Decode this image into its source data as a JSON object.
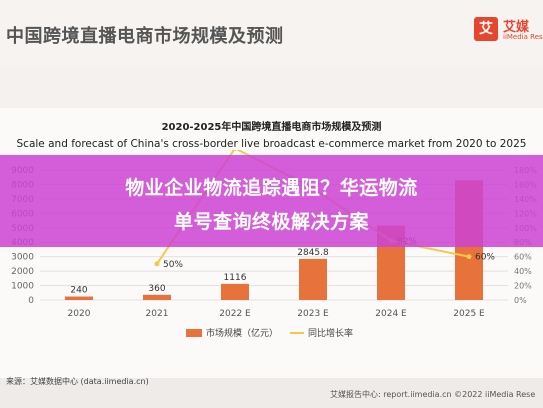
{
  "header": {
    "title": "中国跨境直播电商市场规模及预测",
    "logo_mark": "艾",
    "logo_name": "艾媒",
    "logo_sub": "iiMedia Res"
  },
  "banner": {
    "line1": "物业企业物流追踪遇阻？华运物流",
    "line2": "单号查询终极解决方案",
    "color": "#cd42d4"
  },
  "footer": {
    "source": "来源：艾媒数据中心 (data.iimedia.cn)",
    "right": "艾媒报告中心: report.iimedia.cn  ©2022  iiMedia Rese"
  },
  "chart_data": {
    "type": "bar",
    "title": "2020-2025年中国跨境直播电商市场规模及预测",
    "subtitle": "Scale and forecast of China's cross-border live broadcast e-commerce market from 2020 to 2025",
    "categories": [
      "2020",
      "2021",
      "2022 E",
      "2023 E",
      "2024 E",
      "2025 E"
    ],
    "ylim": [
      0,
      9000
    ],
    "yticks": [
      "0",
      "1000",
      "2000",
      "3000",
      "4000",
      "5000",
      "6000",
      "7000",
      "8000",
      "9000"
    ],
    "y2ticks": [
      "0%",
      "20%",
      "40%",
      "60%",
      "80%",
      "100%",
      "120%",
      "140%",
      "160%",
      "180%"
    ],
    "y2lim": [
      0,
      180
    ],
    "series": [
      {
        "name": "市场规模（亿元）",
        "type": "bar",
        "color": "#e8723c",
        "values": [
          240,
          360,
          1116,
          2845.8,
          5145,
          8287
        ],
        "labels": [
          "240",
          "360",
          "1116",
          "2845.8",
          "",
          ""
        ]
      },
      {
        "name": "同比增长率",
        "type": "line",
        "color": "#f2c94c",
        "values": [
          null,
          50,
          210,
          155,
          82,
          60
        ],
        "labels": [
          "",
          "50%",
          "",
          "",
          "82%",
          "60%"
        ]
      }
    ],
    "legend_position": "bottom"
  }
}
